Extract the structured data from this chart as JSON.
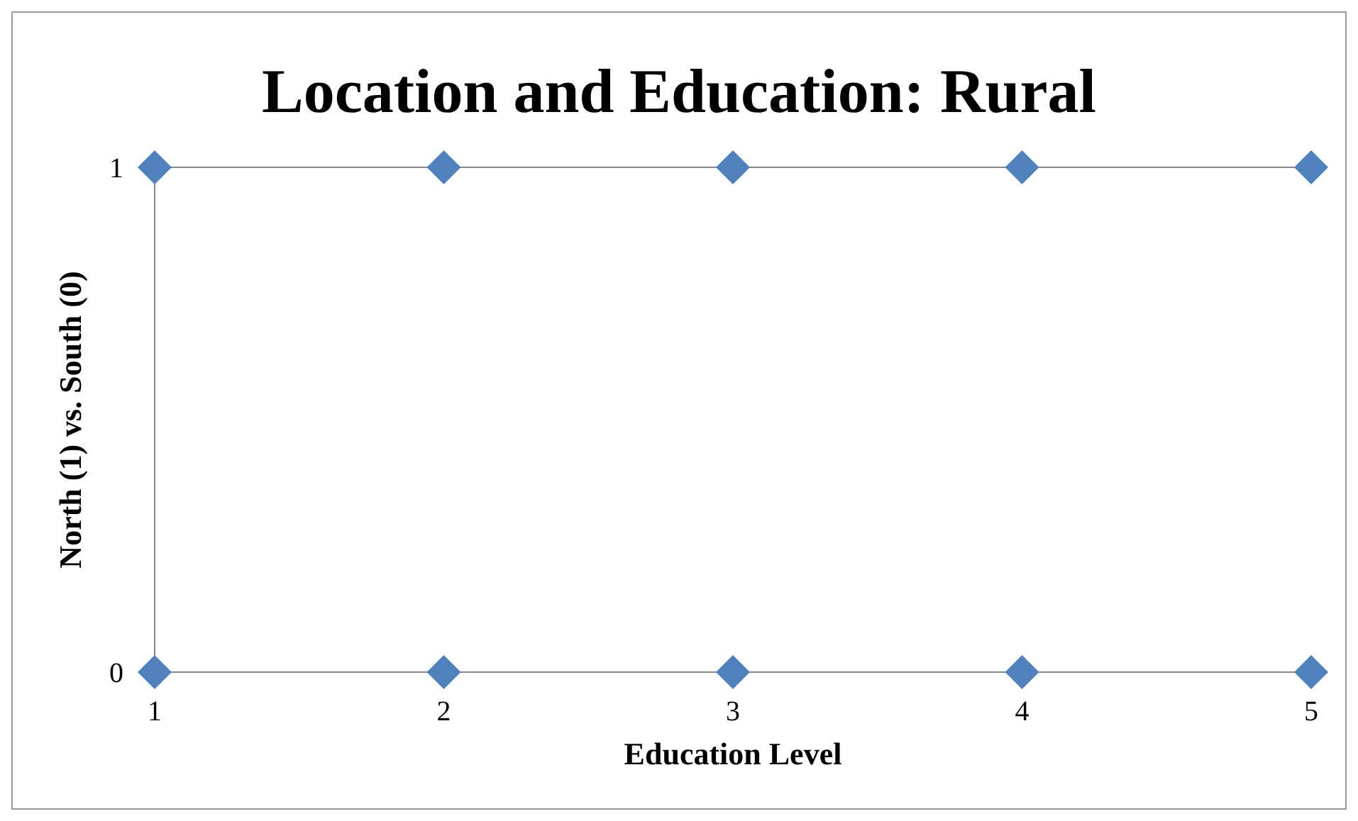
{
  "chart_data": {
    "type": "scatter",
    "title": "Location and Education: Rural",
    "xlabel": "Education Level",
    "ylabel": "North (1) vs. South (0)",
    "x": [
      1,
      2,
      3,
      4,
      5,
      1,
      2,
      3,
      4,
      5
    ],
    "values": [
      1,
      1,
      1,
      1,
      1,
      0,
      0,
      0,
      0,
      0
    ],
    "color": "#4f81bd",
    "marker": "diamond",
    "xlim": [
      1,
      5
    ],
    "xticks": [
      1,
      2,
      3,
      4,
      5
    ],
    "ylim": [
      0,
      1
    ],
    "yticks": [
      0,
      1
    ]
  }
}
